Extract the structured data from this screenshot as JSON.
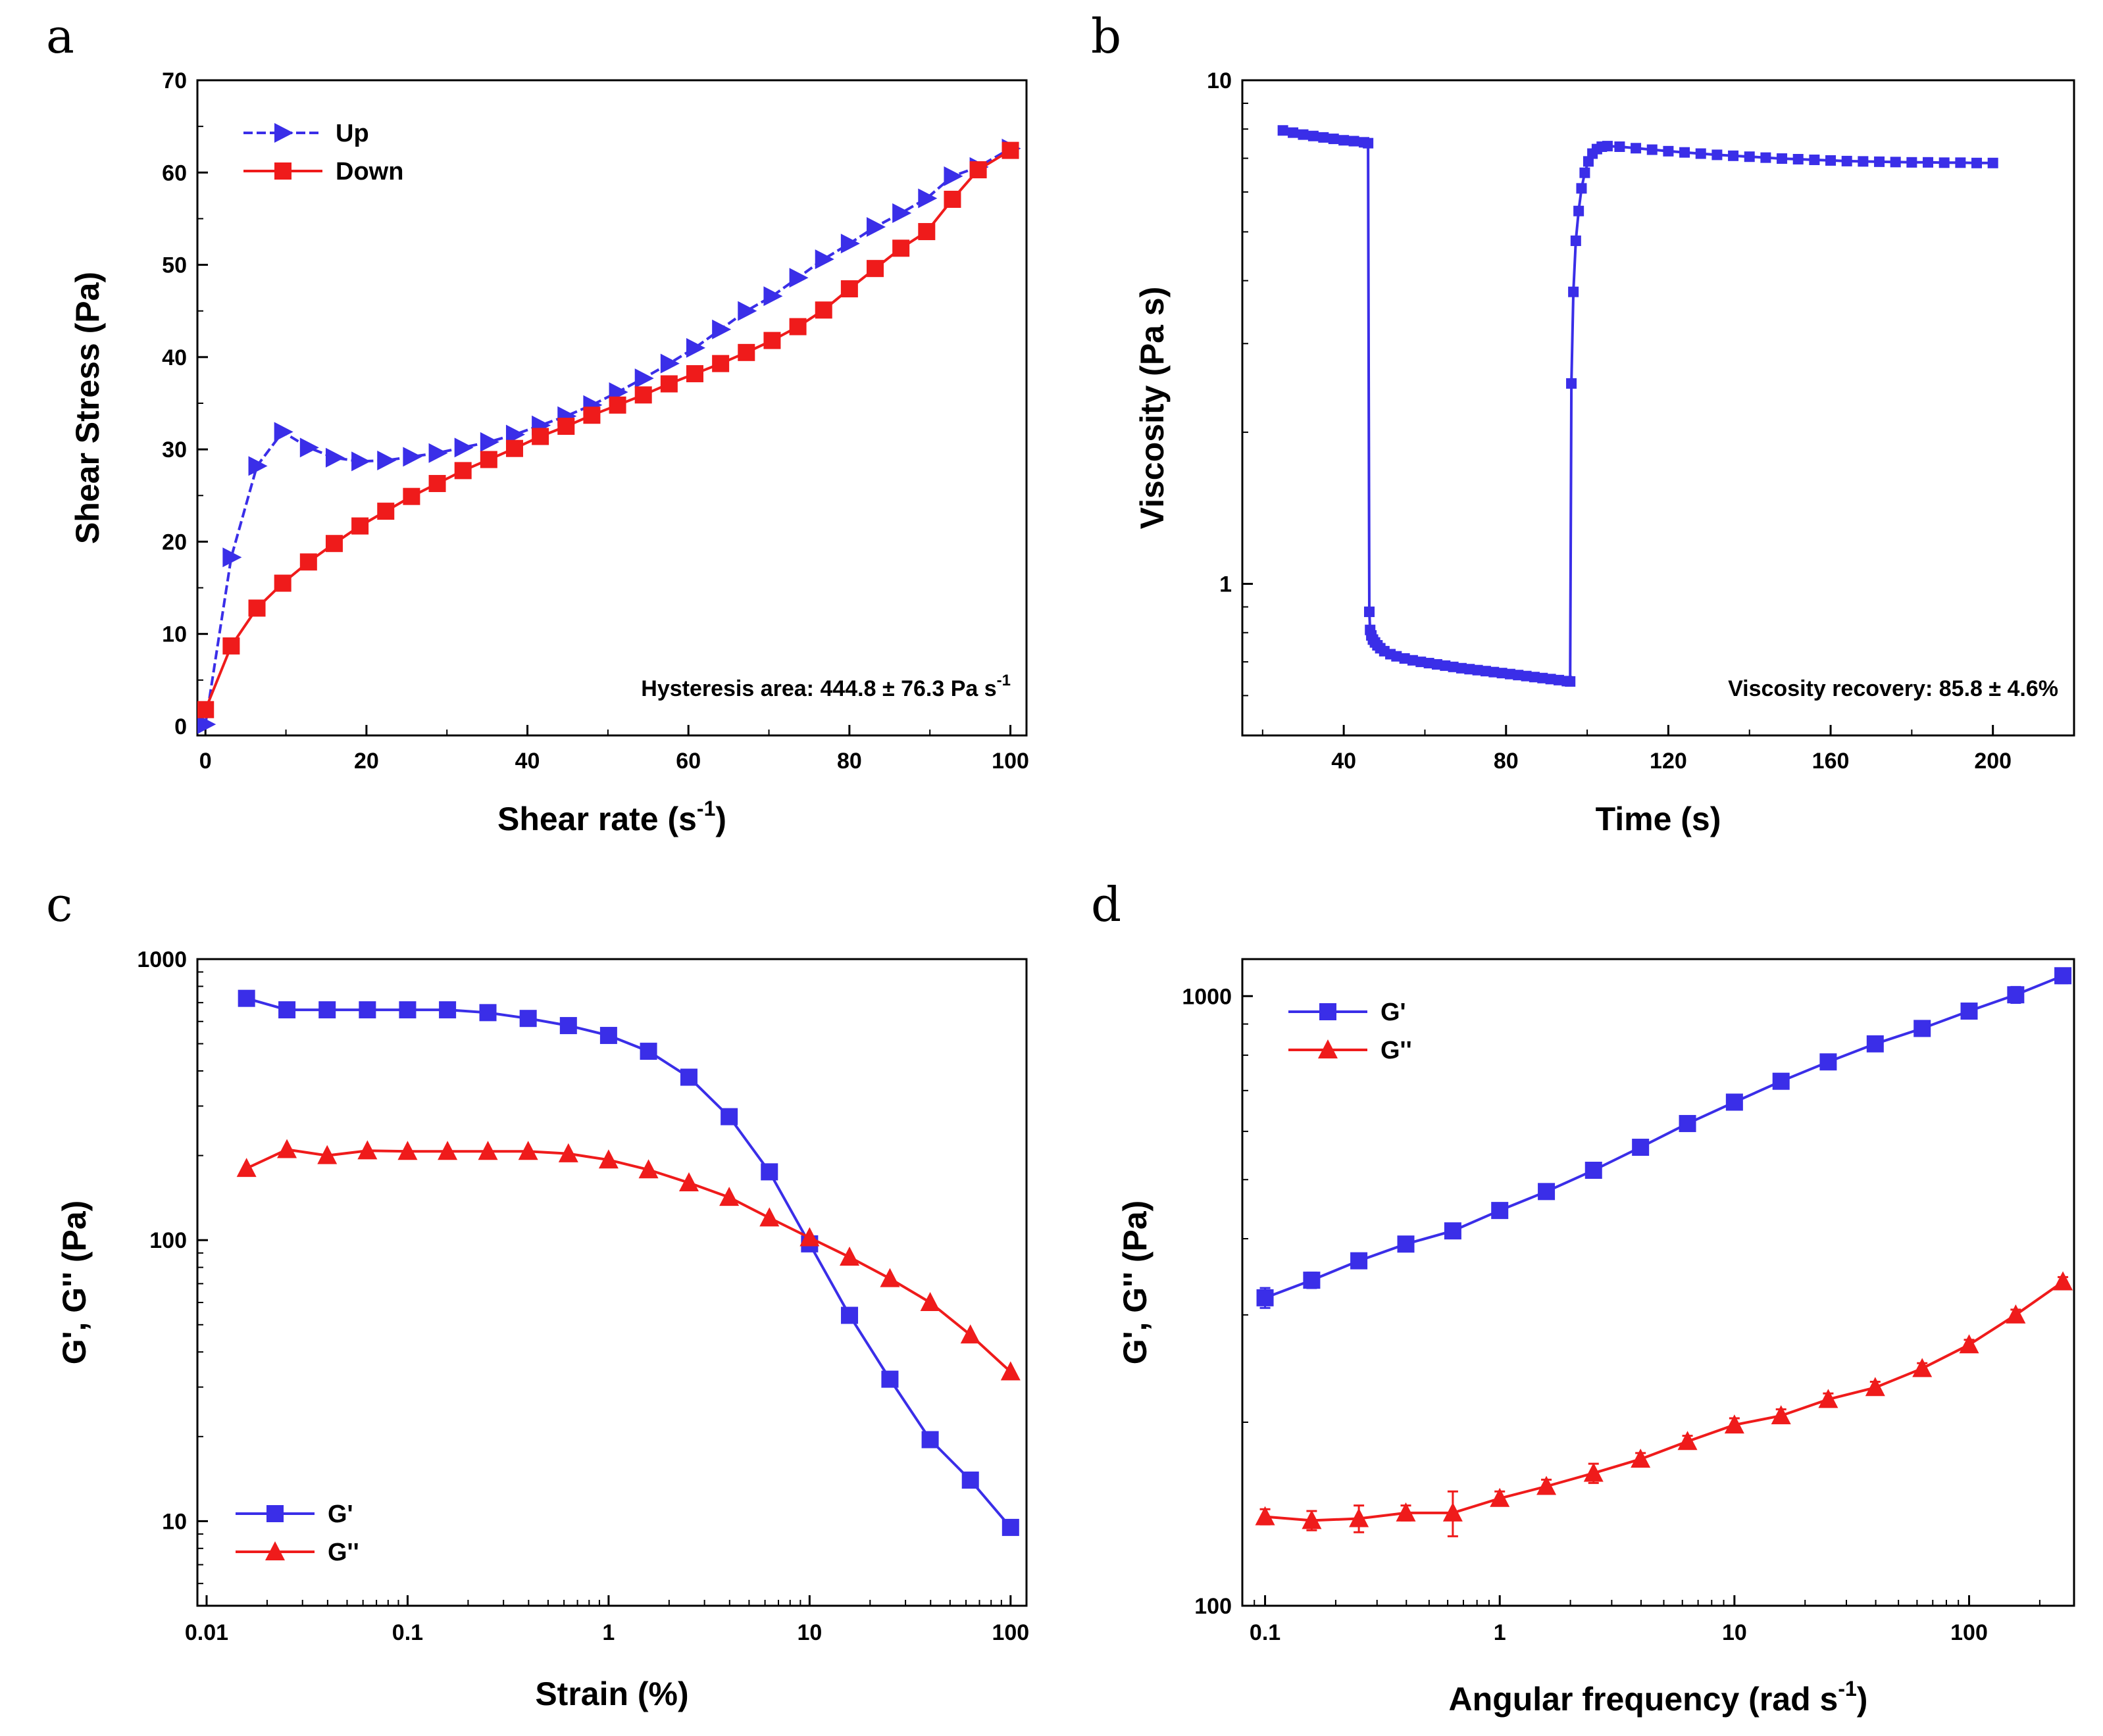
{
  "colors": {
    "blue": "#3a2ee8",
    "red": "#ef1b1b"
  },
  "chart_data": [
    {
      "id": "a",
      "panel_label": "a",
      "type": "line",
      "xscale": "linear",
      "yscale": "linear",
      "xlim": [
        -1,
        102
      ],
      "ylim": [
        -1,
        70
      ],
      "xticks": [
        0,
        20,
        40,
        60,
        80,
        100
      ],
      "xtick_labels": [
        "0",
        "20",
        "40",
        "60",
        "80",
        "100"
      ],
      "yticks": [
        0,
        10,
        20,
        30,
        40,
        50,
        60,
        70
      ],
      "ytick_labels": [
        "0",
        "10",
        "20",
        "30",
        "40",
        "50",
        "60",
        "70"
      ],
      "xlabel": "Shear rate (s",
      "xlabel_sup": "-1",
      "xlabel_end": ")",
      "ylabel": "Shear Stress (Pa)",
      "legend_position": "top-left",
      "annotation": "Hysteresis area: 444.8 ± 76.3 Pa s",
      "annotation_sup": "-1",
      "annotation_position": "bottom-right",
      "series": [
        {
          "name": "Up",
          "color": "#3a2ee8",
          "marker": "triangle-right",
          "dashed": true,
          "x": [
            0,
            3.2,
            6.4,
            9.6,
            12.8,
            16,
            19.2,
            22.4,
            25.6,
            28.8,
            32,
            35.2,
            38.4,
            41.6,
            44.8,
            48,
            51.2,
            54.4,
            57.6,
            60.8,
            64,
            67.2,
            70.4,
            73.6,
            76.8,
            80,
            83.2,
            86.4,
            89.6,
            92.8,
            96,
            100
          ],
          "y": [
            0.2,
            18.3,
            28.2,
            31.9,
            30.2,
            29.1,
            28.7,
            28.8,
            29.2,
            29.6,
            30.2,
            30.8,
            31.6,
            32.6,
            33.6,
            34.8,
            36.2,
            37.7,
            39.3,
            41,
            43,
            45,
            46.6,
            48.6,
            50.6,
            52.3,
            54.1,
            55.6,
            57.2,
            59.6,
            60.6,
            62.6
          ]
        },
        {
          "name": "Down",
          "color": "#ef1b1b",
          "marker": "square",
          "dashed": false,
          "x": [
            0,
            3.2,
            6.4,
            9.6,
            12.8,
            16,
            19.2,
            22.4,
            25.6,
            28.8,
            32,
            35.2,
            38.4,
            41.6,
            44.8,
            48,
            51.2,
            54.4,
            57.6,
            60.8,
            64,
            67.2,
            70.4,
            73.6,
            76.8,
            80,
            83.2,
            86.4,
            89.6,
            92.8,
            96,
            100
          ],
          "y": [
            1.8,
            8.7,
            12.8,
            15.5,
            17.8,
            19.8,
            21.7,
            23.3,
            24.9,
            26.3,
            27.7,
            28.9,
            30.1,
            31.4,
            32.5,
            33.7,
            34.8,
            35.9,
            37.1,
            38.2,
            39.3,
            40.5,
            41.8,
            43.3,
            45.1,
            47.4,
            49.6,
            51.8,
            53.6,
            57.1,
            60.3,
            62.4
          ]
        }
      ]
    },
    {
      "id": "b",
      "panel_label": "b",
      "type": "scatter",
      "xscale": "linear",
      "yscale": "log",
      "xlim": [
        15,
        220
      ],
      "ylim": [
        0.5,
        10
      ],
      "xticks": [
        40,
        80,
        120,
        160,
        200
      ],
      "xtick_labels": [
        "40",
        "80",
        "120",
        "160",
        "200"
      ],
      "yticks": [
        1,
        10
      ],
      "ytick_labels": [
        "1",
        "10"
      ],
      "xlabel": "Time (s)",
      "ylabel": "Viscosity (Pa s)",
      "annotation": "Viscosity recovery: 85.8 ± 4.6%",
      "annotation_position": "bottom-right",
      "series": [
        {
          "name": "Viscosity",
          "color": "#3a2ee8",
          "marker": "square",
          "connected": true,
          "x": [
            25,
            27.5,
            30,
            32.5,
            35,
            37.5,
            40,
            42.5,
            45,
            46,
            46.3,
            46.5,
            46.8,
            47.2,
            47.7,
            48.3,
            49,
            50,
            51.5,
            53,
            55,
            57,
            59,
            61,
            63,
            65,
            67,
            69,
            71,
            73,
            75,
            77,
            79,
            81,
            83,
            85,
            87,
            89,
            91,
            93,
            95,
            95.8,
            96.1,
            96.6,
            97.2,
            97.9,
            98.6,
            99.4,
            100.3,
            101.3,
            102.4,
            103.6,
            105,
            108,
            112,
            116,
            120,
            124,
            128,
            132,
            136,
            140,
            144,
            148,
            152,
            156,
            160,
            164,
            168,
            172,
            176,
            180,
            184,
            188,
            192,
            196,
            200
          ],
          "y": [
            7.95,
            7.87,
            7.8,
            7.75,
            7.7,
            7.65,
            7.6,
            7.57,
            7.53,
            7.5,
            0.88,
            0.81,
            0.79,
            0.775,
            0.765,
            0.755,
            0.745,
            0.735,
            0.725,
            0.718,
            0.711,
            0.705,
            0.7,
            0.696,
            0.692,
            0.688,
            0.684,
            0.68,
            0.677,
            0.674,
            0.671,
            0.668,
            0.665,
            0.662,
            0.659,
            0.656,
            0.653,
            0.65,
            0.647,
            0.644,
            0.641,
            0.64,
            2.5,
            3.8,
            4.8,
            5.5,
            6.1,
            6.55,
            6.9,
            7.15,
            7.3,
            7.38,
            7.4,
            7.38,
            7.33,
            7.28,
            7.23,
            7.19,
            7.15,
            7.11,
            7.08,
            7.05,
            7.02,
            6.99,
            6.97,
            6.95,
            6.93,
            6.91,
            6.9,
            6.89,
            6.88,
            6.87,
            6.87,
            6.86,
            6.86,
            6.85,
            6.85
          ]
        }
      ]
    },
    {
      "id": "c",
      "panel_label": "c",
      "type": "line",
      "xscale": "log",
      "yscale": "log",
      "xlim": [
        0.009,
        120
      ],
      "ylim": [
        5,
        1000
      ],
      "xticks": [
        0.01,
        0.1,
        1,
        10,
        100
      ],
      "xtick_labels": [
        "0.01",
        "0.1",
        "1",
        "10",
        "100"
      ],
      "yticks": [
        10,
        100,
        1000
      ],
      "ytick_labels": [
        "10",
        "100",
        "1000"
      ],
      "xlabel": "Strain (%)",
      "ylabel": "G', G'' (Pa)",
      "legend_position": "bottom-left",
      "series": [
        {
          "name": "G'",
          "color": "#3a2ee8",
          "marker": "square",
          "x": [
            0.0158,
            0.0251,
            0.0398,
            0.0631,
            0.1,
            0.158,
            0.251,
            0.398,
            0.631,
            1,
            1.58,
            2.51,
            3.98,
            6.31,
            10,
            15.8,
            25.1,
            39.8,
            63.1,
            100
          ],
          "y": [
            725,
            660,
            660,
            660,
            660,
            660,
            645,
            615,
            580,
            535,
            470,
            380,
            275,
            175,
            97,
            54,
            32,
            19.5,
            14,
            9.5
          ]
        },
        {
          "name": "G''",
          "color": "#ef1b1b",
          "marker": "triangle-up",
          "x": [
            0.0158,
            0.0251,
            0.0398,
            0.0631,
            0.1,
            0.158,
            0.251,
            0.398,
            0.631,
            1,
            1.58,
            2.51,
            3.98,
            6.31,
            10,
            15.8,
            25.1,
            39.8,
            63.1,
            100
          ],
          "y": [
            180,
            210,
            200,
            208,
            207,
            207,
            207,
            207,
            203,
            193,
            178,
            160,
            142,
            120,
            102,
            87,
            73,
            60,
            46,
            34
          ]
        }
      ]
    },
    {
      "id": "d",
      "panel_label": "d",
      "type": "line",
      "xscale": "log",
      "yscale": "log",
      "xlim": [
        0.08,
        280
      ],
      "ylim": [
        100,
        1150
      ],
      "xticks": [
        0.1,
        1,
        10,
        100
      ],
      "xtick_labels": [
        "0.1",
        "1",
        "10",
        "100"
      ],
      "yticks": [
        100,
        1000
      ],
      "ytick_labels": [
        "100",
        "1000"
      ],
      "xlabel": "Angular frequency (rad s",
      "xlabel_sup": "-1",
      "xlabel_end": ")",
      "ylabel": "G', G'' (Pa)",
      "legend_position": "top-left",
      "series": [
        {
          "name": "G'",
          "color": "#3a2ee8",
          "marker": "square",
          "x": [
            0.1,
            0.158,
            0.251,
            0.398,
            0.631,
            1,
            1.58,
            2.51,
            3.98,
            6.31,
            10,
            15.8,
            25.1,
            39.8,
            63.1,
            100,
            158,
            251
          ],
          "y": [
            320,
            342,
            368,
            392,
            412,
            445,
            478,
            518,
            565,
            618,
            670,
            725,
            780,
            835,
            885,
            945,
            1005,
            1080
          ],
          "err": [
            12,
            10,
            10,
            10,
            8,
            12,
            12,
            12,
            12,
            14,
            16,
            18,
            18,
            20,
            22,
            24,
            30,
            30
          ]
        },
        {
          "name": "G''",
          "color": "#ef1b1b",
          "marker": "triangle-up",
          "x": [
            0.1,
            0.158,
            0.251,
            0.398,
            0.631,
            1,
            1.58,
            2.51,
            3.98,
            6.31,
            10,
            15.8,
            25.1,
            39.8,
            63.1,
            100,
            158,
            251
          ],
          "y": [
            140,
            138,
            139,
            142,
            142,
            150,
            157,
            165,
            174,
            186,
            198,
            205,
            218,
            228,
            245,
            268,
            300,
            340
          ],
          "err": [
            4,
            5,
            7,
            4,
            12,
            4,
            4,
            6,
            4,
            4,
            5,
            5,
            5,
            5,
            5,
            5,
            6,
            6
          ]
        }
      ]
    }
  ]
}
